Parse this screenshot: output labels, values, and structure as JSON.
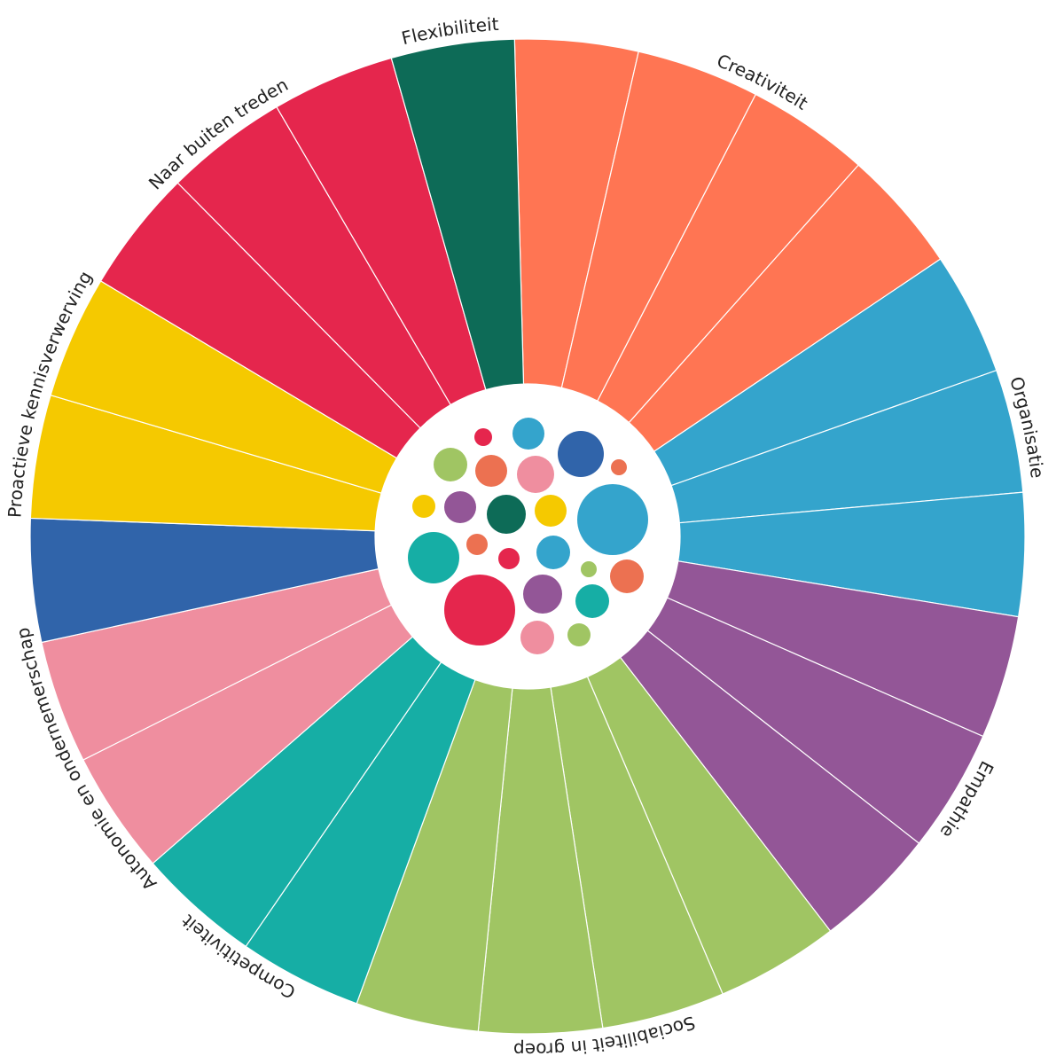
{
  "chart_data": {
    "type": "radial-segments",
    "title": "",
    "categories": [
      {
        "name": "Creativiteit",
        "segments": 4,
        "color": "#FF7553"
      },
      {
        "name": "Organisatie",
        "segments": 3,
        "color": "#34A4CC"
      },
      {
        "name": "Empathie",
        "segments": 3,
        "color": "#935697"
      },
      {
        "name": "Sociabiliteit in groep",
        "segments": 4,
        "color": "#A0C563"
      },
      {
        "name": "Competitiviteit",
        "segments": 2,
        "color": "#16AEA5"
      },
      {
        "name": "Autonomie en ondernemerschap",
        "segments": 2,
        "color": "#EF8E9F"
      },
      {
        "name": "",
        "segments": 1,
        "color": "#3064AA"
      },
      {
        "name": "Proactieve kennisverwerving",
        "segments": 2,
        "color": "#F5C900"
      },
      {
        "name": "Naar buiten treden",
        "segments": 3,
        "color": "#E5264D"
      },
      {
        "name": "Flexibiliteit",
        "segments": 1,
        "color": "#0D6B57"
      }
    ],
    "segment_values": [
      1,
      1,
      1,
      1,
      1,
      1,
      1,
      1,
      1,
      1,
      1,
      1,
      1,
      1,
      1,
      1,
      1,
      1,
      1,
      1,
      1,
      1,
      1,
      1,
      1
    ],
    "bubbles": [
      {
        "color": "#E5264D",
        "size": 10
      },
      {
        "color": "#34A4CC",
        "size": 18
      },
      {
        "color": "#3064AA",
        "size": 26
      },
      {
        "color": "#A0C563",
        "size": 19
      },
      {
        "color": "#EC7151",
        "size": 18
      },
      {
        "color": "#EF8E9F",
        "size": 21
      },
      {
        "color": "#EC7151",
        "size": 9
      },
      {
        "color": "#F5C900",
        "size": 13
      },
      {
        "color": "#935697",
        "size": 18
      },
      {
        "color": "#0D6B57",
        "size": 22
      },
      {
        "color": "#F5C900",
        "size": 18
      },
      {
        "color": "#34A4CC",
        "size": 40
      },
      {
        "color": "#16AEA5",
        "size": 29
      },
      {
        "color": "#EC7151",
        "size": 12
      },
      {
        "color": "#E5264D",
        "size": 12
      },
      {
        "color": "#34A4CC",
        "size": 19
      },
      {
        "color": "#A0C563",
        "size": 9
      },
      {
        "color": "#EC7151",
        "size": 19
      },
      {
        "color": "#E5264D",
        "size": 40
      },
      {
        "color": "#935697",
        "size": 22
      },
      {
        "color": "#16AEA5",
        "size": 19
      },
      {
        "color": "#EF8E9F",
        "size": 19
      },
      {
        "color": "#A0C563",
        "size": 13
      }
    ]
  }
}
